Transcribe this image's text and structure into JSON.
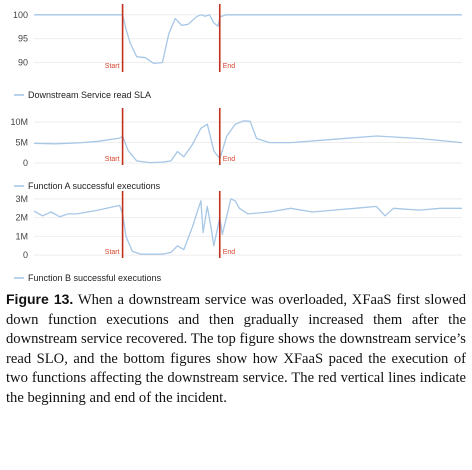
{
  "chart_data": [
    {
      "type": "line",
      "ylim": [
        88,
        101
      ],
      "yticks": [
        "100",
        "95",
        "90"
      ],
      "ytick_values": [
        100,
        95,
        90
      ],
      "legend": "Downstream Service read SLA",
      "markers": [
        {
          "label": "Start",
          "x": 0.207
        },
        {
          "label": "End",
          "x": 0.434
        }
      ],
      "color": "#a7c7e7",
      "x": [
        0,
        0.05,
        0.1,
        0.15,
        0.2,
        0.207,
        0.215,
        0.225,
        0.24,
        0.26,
        0.28,
        0.3,
        0.315,
        0.33,
        0.345,
        0.36,
        0.38,
        0.39,
        0.4,
        0.41,
        0.42,
        0.43,
        0.435,
        0.45,
        0.5,
        0.6,
        0.7,
        0.8,
        0.9,
        1
      ],
      "y": [
        100,
        100,
        100,
        100,
        100,
        100,
        97,
        94,
        91.2,
        91,
        89.8,
        90,
        96,
        99.2,
        97.8,
        98,
        99.6,
        100,
        99.7,
        100,
        98.3,
        97.6,
        99.6,
        100,
        100,
        100,
        100,
        100,
        100,
        100
      ]
    },
    {
      "type": "line",
      "ylim": [
        -0.5,
        12
      ],
      "yticks": [
        "10M",
        "5M",
        "0"
      ],
      "ytick_values": [
        10,
        5,
        0
      ],
      "legend": "Function A successful executions",
      "markers": [
        {
          "label": "Start",
          "x": 0.207
        },
        {
          "label": "End",
          "x": 0.434
        }
      ],
      "color": "#a7c7e7",
      "x": [
        0,
        0.05,
        0.1,
        0.15,
        0.2,
        0.207,
        0.22,
        0.24,
        0.27,
        0.3,
        0.32,
        0.335,
        0.35,
        0.37,
        0.39,
        0.405,
        0.42,
        0.434,
        0.45,
        0.47,
        0.49,
        0.505,
        0.52,
        0.55,
        0.6,
        0.7,
        0.8,
        0.9,
        1
      ],
      "y": [
        4.8,
        4.7,
        4.9,
        5.3,
        6.1,
        6.5,
        3.0,
        0.5,
        0.1,
        0.2,
        0.5,
        2.8,
        1.5,
        4.5,
        8.5,
        9.5,
        3.0,
        1.0,
        6.5,
        9.5,
        10.3,
        10.2,
        6.0,
        5.0,
        5.0,
        5.8,
        6.6,
        6.0,
        5.0
      ]
    },
    {
      "type": "line",
      "ylim": [
        -0.15,
        3.1
      ],
      "yticks": [
        "3M",
        "2M",
        "1M",
        "0"
      ],
      "ytick_values": [
        3,
        2,
        1,
        0
      ],
      "legend": "Function B successful executions",
      "markers": [
        {
          "label": "Start",
          "x": 0.207
        },
        {
          "label": "End",
          "x": 0.434
        }
      ],
      "color": "#a7c7e7",
      "x": [
        0,
        0.02,
        0.04,
        0.06,
        0.08,
        0.1,
        0.15,
        0.2,
        0.207,
        0.215,
        0.23,
        0.25,
        0.28,
        0.3,
        0.32,
        0.335,
        0.35,
        0.37,
        0.38,
        0.39,
        0.395,
        0.405,
        0.415,
        0.42,
        0.434,
        0.44,
        0.46,
        0.47,
        0.48,
        0.5,
        0.55,
        0.6,
        0.65,
        0.7,
        0.75,
        0.8,
        0.82,
        0.84,
        0.9,
        0.95,
        1
      ],
      "y": [
        2.35,
        2.1,
        2.3,
        2.05,
        2.2,
        2.2,
        2.4,
        2.65,
        2.2,
        1.0,
        0.2,
        0.05,
        0.05,
        0.05,
        0.15,
        0.5,
        0.3,
        1.5,
        2.2,
        2.9,
        1.2,
        2.6,
        1.3,
        0.5,
        2.0,
        1.1,
        3.0,
        2.9,
        2.5,
        2.2,
        2.3,
        2.5,
        2.3,
        2.4,
        2.5,
        2.6,
        2.1,
        2.5,
        2.4,
        2.5,
        2.5
      ]
    }
  ],
  "caption": {
    "label": "Figure 13.",
    "text": " When a downstream service was overloaded, XFaaS first slowed down function executions and then gradually increased them after the downstream service recovered. The top figure shows the downstream service’s read SLO, and the bottom figures show how XFaaS paced the execution of two functions affecting the downstream service. The red vertical lines indicate the beginning and end of the incident."
  }
}
